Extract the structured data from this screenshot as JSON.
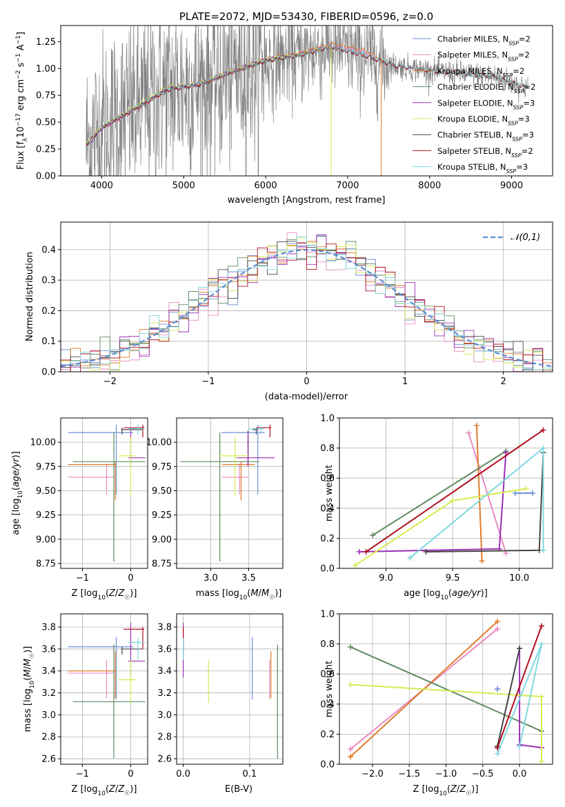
{
  "chart_data": [
    {
      "id": "spectrum",
      "type": "line",
      "title": "PLATE=2072, MJD=53430, FIBERID=0596, z=0.0",
      "xlabel": "wavelength [Angstrom, rest frame]",
      "ylabel": "Flux [f_λ 10^-17 erg cm^-2 s^-1 A^-1]",
      "xlim": [
        3500,
        9500
      ],
      "ylim": [
        0,
        1.4
      ],
      "xticks": [
        4000,
        5000,
        6000,
        7000,
        8000,
        9000
      ],
      "yticks": [
        0.0,
        0.25,
        0.5,
        0.75,
        1.0,
        1.25
      ],
      "data_color": "#808080",
      "data_note": "noisy observed spectrum from ~3800 to ~9200 A",
      "legend_position": "upper right",
      "series": [
        {
          "name": "Chabrier MILES, N_SSP=2",
          "color": "#6d8fd4",
          "x": [
            3810,
            4000,
            4400,
            4800,
            5200,
            5600,
            6000,
            6400,
            6800,
            7200,
            7400
          ],
          "y": [
            0.28,
            0.45,
            0.62,
            0.8,
            0.86,
            0.98,
            1.08,
            1.12,
            1.21,
            1.15,
            1.08
          ]
        },
        {
          "name": "Salpeter MILES, N_SSP=2",
          "color": "#e88ac0",
          "x": [
            3810,
            4000,
            4400,
            4800,
            5200,
            5600,
            6000,
            6400,
            6800,
            7200,
            7400
          ],
          "y": [
            0.27,
            0.44,
            0.61,
            0.79,
            0.85,
            0.97,
            1.07,
            1.12,
            1.22,
            1.16,
            1.08
          ]
        },
        {
          "name": "Kroupa MILES, N_SSP=2",
          "color": "#e07b2a",
          "x": [
            3810,
            4000,
            4400,
            4800,
            5200,
            5600,
            6000,
            6400,
            6800,
            7200,
            7400
          ],
          "y": [
            0.29,
            0.46,
            0.63,
            0.81,
            0.86,
            0.99,
            1.09,
            1.14,
            1.23,
            1.17,
            1.09
          ]
        },
        {
          "name": "Chabrier ELODIE, N_SSP=2",
          "color": "#5e8a60",
          "x": [
            3810,
            4000,
            4400,
            4800,
            5200,
            5600,
            6000,
            6400,
            6800
          ],
          "y": [
            0.28,
            0.45,
            0.62,
            0.8,
            0.85,
            0.97,
            1.07,
            1.12,
            1.2
          ]
        },
        {
          "name": "Salpeter ELODIE, N_SSP=3",
          "color": "#9b30b5",
          "x": [
            3810,
            4000,
            4400,
            4800,
            5200,
            5600,
            6000,
            6400,
            6800
          ],
          "y": [
            0.27,
            0.44,
            0.63,
            0.82,
            0.86,
            0.98,
            1.08,
            1.13,
            1.21
          ]
        },
        {
          "name": "Kroupa ELODIE, N_SSP=3",
          "color": "#d6ea50",
          "x": [
            3810,
            4000,
            4400,
            4800,
            5200,
            5600,
            6000,
            6400,
            6800
          ],
          "y": [
            0.28,
            0.46,
            0.64,
            0.83,
            0.86,
            0.98,
            1.08,
            1.13,
            1.2
          ]
        },
        {
          "name": "Chabrier STELIB, N_SSP=3",
          "color": "#444444",
          "x": [
            3810,
            4000,
            4400,
            4800,
            5200,
            5600,
            6000,
            6400,
            6800,
            7200,
            7600,
            8000,
            8400,
            8800,
            9200
          ],
          "y": [
            0.28,
            0.45,
            0.62,
            0.8,
            0.85,
            0.97,
            1.07,
            1.12,
            1.2,
            1.12,
            1.02,
            0.98,
            0.95,
            0.92,
            0.82
          ]
        },
        {
          "name": "Salpeter STELIB, N_SSP=2",
          "color": "#b01020",
          "x": [
            3810,
            4000,
            4400,
            4800,
            5200,
            5600,
            6000,
            6400,
            6800,
            7200,
            7600,
            8000,
            8400,
            8800,
            9200
          ],
          "y": [
            0.28,
            0.45,
            0.62,
            0.8,
            0.85,
            0.97,
            1.07,
            1.12,
            1.2,
            1.12,
            1.02,
            0.98,
            0.95,
            0.92,
            0.82
          ]
        },
        {
          "name": "Kroupa STELIB, N_SSP=3",
          "color": "#7fd8e0",
          "x": [
            3810,
            4000,
            4400,
            4800,
            5200,
            5600,
            6000,
            6400,
            6800,
            7200,
            7600,
            8000,
            8400,
            8800,
            9200
          ],
          "y": [
            0.27,
            0.46,
            0.63,
            0.81,
            0.86,
            0.98,
            1.08,
            1.12,
            1.21,
            1.13,
            1.03,
            0.98,
            0.95,
            0.92,
            0.82
          ]
        }
      ]
    },
    {
      "id": "residuals",
      "type": "histogram",
      "xlabel": "(data-model)/error",
      "ylabel": "Normed distribution",
      "xlim": [
        -2.5,
        2.5
      ],
      "ylim": [
        0,
        0.49
      ],
      "xticks": [
        -2,
        -1,
        0,
        1,
        2
      ],
      "yticks": [
        0.0,
        0.1,
        0.2,
        0.3,
        0.4
      ],
      "legend": "𝒩(0,1)",
      "legend_position": "upper right",
      "reference_color": "#5b8ad6",
      "grid": true
    },
    {
      "id": "age-vs-Z",
      "type": "errorbar",
      "xlabel": "Z [log10(Z/Z☉)]",
      "ylabel": "age [log10(age/yr)]",
      "xlim": [
        -1.45,
        0.35
      ],
      "ylim": [
        8.7,
        10.25
      ],
      "xticks": [
        -1,
        0
      ],
      "yticks": [
        8.75,
        9.0,
        9.25,
        9.5,
        9.75,
        10.0
      ],
      "grid": true
    },
    {
      "id": "age-vs-mass",
      "type": "errorbar",
      "xlabel": "mass [log10(M/M☉)]",
      "xlim": [
        2.55,
        3.95
      ],
      "ylim": [
        8.7,
        10.25
      ],
      "xticks": [
        3.0,
        3.5
      ],
      "yticks": [
        8.75,
        9.0,
        9.25,
        9.5,
        9.75,
        10.0
      ],
      "grid": true
    },
    {
      "id": "weight-vs-age",
      "type": "line",
      "xlabel": "age [log10(age/yr)]",
      "ylabel": "mass weight",
      "xlim": [
        8.65,
        10.25
      ],
      "ylim": [
        0,
        1.0
      ],
      "xticks": [
        9.0,
        9.5,
        10.0
      ],
      "yticks": [
        0.0,
        0.2,
        0.4,
        0.6,
        0.8,
        1.0
      ],
      "grid": true
    },
    {
      "id": "mass-vs-Z",
      "type": "errorbar",
      "xlabel": "Z [log10(Z/Z☉)]",
      "ylabel": "mass [log10(M/M☉)]",
      "xlim": [
        -1.45,
        0.35
      ],
      "ylim": [
        2.55,
        3.92
      ],
      "xticks": [
        -1,
        0
      ],
      "yticks": [
        2.6,
        2.8,
        3.0,
        3.2,
        3.4,
        3.6,
        3.8
      ],
      "grid": true
    },
    {
      "id": "mass-vs-EBV",
      "type": "errorbar",
      "xlabel": "E(B-V)",
      "xlim": [
        -0.01,
        0.15
      ],
      "ylim": [
        2.55,
        3.92
      ],
      "xticks": [
        0.0,
        0.1
      ],
      "yticks": [
        2.6,
        2.8,
        3.0,
        3.2,
        3.4,
        3.6,
        3.8
      ],
      "grid": true
    },
    {
      "id": "weight-vs-Z",
      "type": "line",
      "xlabel": "Z [log10(Z/Z☉)]",
      "ylabel": "mass weight",
      "xlim": [
        -2.45,
        0.45
      ],
      "ylim": [
        0,
        1.0
      ],
      "xticks": [
        -2.0,
        -1.5,
        -1.0,
        -0.5,
        0.0
      ],
      "yticks": [
        0.0,
        0.2,
        0.4,
        0.6,
        0.8,
        1.0
      ],
      "grid": true
    }
  ],
  "fits": [
    {
      "color": "#6d8fd4",
      "ages": [
        10.1,
        9.97
      ],
      "weights": [
        0.5,
        0.5
      ],
      "Z": [
        -0.3,
        -0.3
      ],
      "age": 10.1,
      "age_lo": 9.46,
      "age_hi": 10.18,
      "Zmean": -0.3,
      "Zlo": -1.3,
      "Zhi": 0.05,
      "mass": 3.62,
      "mlo": 3.14,
      "mhi": 3.71,
      "ebv": 0.104
    },
    {
      "color": "#e88ac0",
      "ages": [
        9.62,
        9.9
      ],
      "weights": [
        0.9,
        0.1
      ],
      "Z": [
        -0.3,
        -2.3
      ],
      "age": 9.64,
      "age_lo": 9.46,
      "age_hi": 9.78,
      "Zmean": -0.5,
      "Zlo": -1.3,
      "Zhi": -0.35,
      "mass": 3.38,
      "mlo": 3.15,
      "mhi": 3.5,
      "ebv": 0.13
    },
    {
      "color": "#e07b2a",
      "ages": [
        9.68,
        9.72
      ],
      "weights": [
        0.95,
        0.05
      ],
      "Z": [
        -0.3,
        -2.3
      ],
      "age": 9.77,
      "age_lo": 9.4,
      "age_hi": 9.8,
      "Zmean": -0.32,
      "Zlo": -1.3,
      "Zhi": -0.3,
      "mass": 3.4,
      "mlo": 3.15,
      "mhi": 3.58,
      "ebv": 0.132
    },
    {
      "color": "#5e8a60",
      "ages": [
        8.9,
        9.9
      ],
      "weights": [
        0.22,
        0.78
      ],
      "Z": [
        0.3,
        -2.3
      ],
      "age": 9.8,
      "age_lo": 8.77,
      "age_hi": 10.1,
      "Zmean": -0.35,
      "Zlo": -1.2,
      "Zhi": 0.3,
      "mass": 3.12,
      "mlo": 2.6,
      "mhi": 3.64,
      "ebv": 0.142
    },
    {
      "color": "#9b30b5",
      "ages": [
        8.8,
        9.85,
        9.9
      ],
      "weights": [
        0.11,
        0.13,
        0.77
      ],
      "Z": [
        0.3,
        0.0,
        0.0
      ],
      "age": 9.84,
      "age_lo": 9.75,
      "age_hi": 10.12,
      "Zmean": 0.0,
      "Zlo": -0.05,
      "Zhi": 0.3,
      "mass": 3.49,
      "mlo": 3.34,
      "mhi": 3.84,
      "ebv": 0.0
    },
    {
      "color": "#d6ea50",
      "ages": [
        8.77,
        9.5,
        10.05
      ],
      "weights": [
        0.02,
        0.45,
        0.53
      ],
      "Z": [
        0.3,
        0.3,
        -2.3
      ],
      "age": 9.86,
      "age_lo": 9.45,
      "age_hi": 10.05,
      "Zmean": 0.0,
      "Zlo": -0.25,
      "Zhi": 0.1,
      "mass": 3.32,
      "mlo": 3.11,
      "mhi": 3.5,
      "ebv": 0.038
    },
    {
      "color": "#444444",
      "ages": [
        9.3,
        10.15,
        10.18
      ],
      "weights": [
        0.11,
        0.12,
        0.77
      ],
      "Z": [
        -0.3,
        -0.3,
        0.0
      ],
      "age": 10.13,
      "age_lo": 10.08,
      "age_hi": 10.15,
      "Zmean": -0.18,
      "Zlo": -0.2,
      "Zhi": 0.25,
      "mass": 3.6,
      "mlo": 3.55,
      "mhi": 3.62,
      "ebv": 0.0
    },
    {
      "color": "#b01020",
      "ages": [
        8.85,
        10.18
      ],
      "weights": [
        0.11,
        0.92
      ],
      "Z": [
        -0.3,
        0.3
      ],
      "age": 10.15,
      "age_lo": 10.05,
      "age_hi": 10.18,
      "Zmean": 0.25,
      "Zlo": -0.15,
      "Zhi": 0.28,
      "mass": 3.78,
      "mlo": 3.6,
      "mhi": 3.8,
      "ebv": 0.0
    },
    {
      "color": "#7fd8e0",
      "ages": [
        9.18,
        10.18,
        10.18
      ],
      "weights": [
        0.07,
        0.8,
        0.12
      ],
      "Z": [
        -0.3,
        0.3,
        0.0
      ],
      "age": 10.14,
      "age_lo": 10.08,
      "age_hi": 10.18,
      "Zmean": 0.15,
      "Zlo": -0.05,
      "Zhi": 0.3,
      "mass": 3.66,
      "mlo": 3.5,
      "mhi": 3.7,
      "ebv": 0.0
    }
  ]
}
